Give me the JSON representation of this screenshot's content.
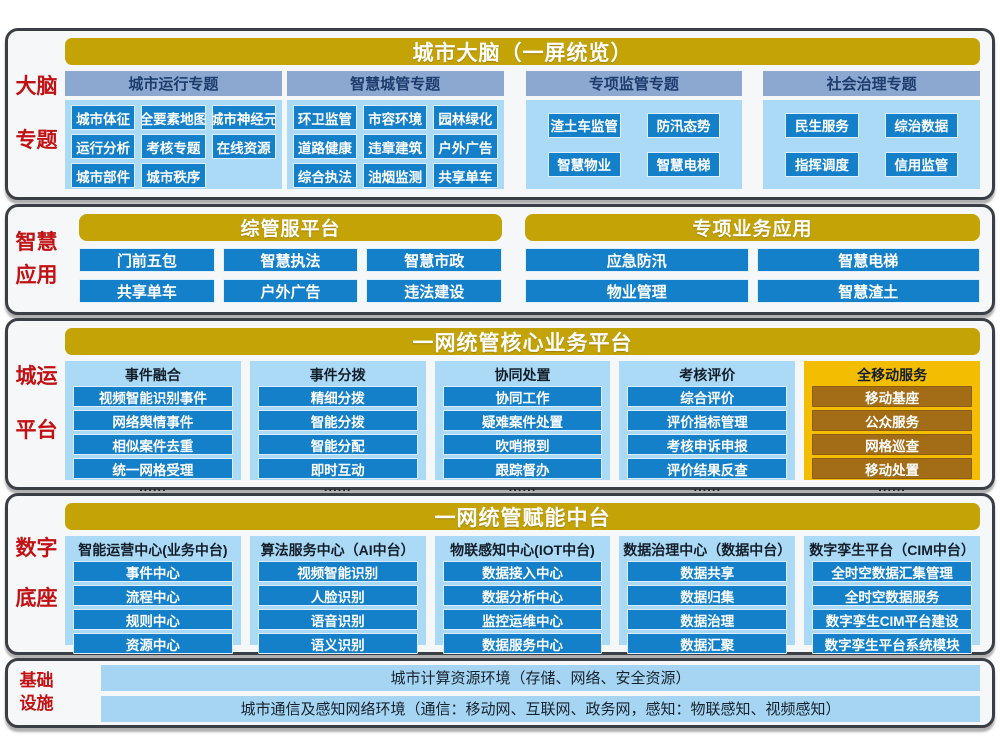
{
  "colors": {
    "gold_header": "#c4a307",
    "steel_header": "#8da8d0",
    "panel_blue": "#aadaf5",
    "chip_blue": "#1580ca",
    "panel_gold": "#f3bd02",
    "chip_brown": "#a36c16",
    "label_red": "#c01113",
    "band_border": "#3a3f45"
  },
  "bands": [
    {
      "id": "brain",
      "label_lines": [
        "大脑",
        "专题"
      ],
      "title": "城市大脑（一屏统览）",
      "groups": [
        {
          "header": "城市运行专题",
          "cols": 3,
          "items": [
            "城市体征",
            "全要素地图",
            "城市神经元",
            "运行分析",
            "考核专题",
            "在线资源",
            "城市部件",
            "城市秩序"
          ]
        },
        {
          "header": "智慧城管专题",
          "cols": 3,
          "items": [
            "环卫监管",
            "市容环境",
            "园林绿化",
            "道路健康",
            "违章建筑",
            "户外广告",
            "综合执法",
            "油烟监测",
            "共享单车"
          ]
        },
        {
          "header": "专项监管专题",
          "cols": 2,
          "items": [
            "渣土车监管",
            "防汛态势",
            "智慧物业",
            "智慧电梯"
          ]
        },
        {
          "header": "社会治理专题",
          "cols": 2,
          "items": [
            "民生服务",
            "综治数据",
            "指挥调度",
            "信用监管"
          ]
        }
      ]
    },
    {
      "id": "apps",
      "label_lines": [
        "智慧",
        "应用"
      ],
      "groups": [
        {
          "title": "综管服平台",
          "cols": 3,
          "items": [
            "门前五包",
            "智慧执法",
            "智慧市政",
            "共享单车",
            "户外广告",
            "违法建设"
          ]
        },
        {
          "title": "专项业务应用",
          "cols": 2,
          "items": [
            "应急防汛",
            "智慧电梯",
            "物业管理",
            "智慧渣土"
          ]
        }
      ]
    },
    {
      "id": "platform",
      "label_lines": [
        "城运",
        "平台"
      ],
      "title": "一网统管核心业务平台",
      "columns": [
        {
          "header": "事件融合",
          "theme": "blue",
          "more": "......",
          "items": [
            "视频智能识别事件",
            "网络舆情事件",
            "相似案件去重",
            "统一网格受理"
          ]
        },
        {
          "header": "事件分拨",
          "theme": "blue",
          "more": "......",
          "items": [
            "精细分拨",
            "智能分拨",
            "智能分配",
            "即时互动"
          ]
        },
        {
          "header": "协同处置",
          "theme": "blue",
          "more": "......",
          "items": [
            "协同工作",
            "疑难案件处置",
            "吹哨报到",
            "跟踪督办"
          ]
        },
        {
          "header": "考核评价",
          "theme": "blue",
          "more": "......",
          "items": [
            "综合评价",
            "评价指标管理",
            "考核申诉申报",
            "评价结果反查"
          ]
        },
        {
          "header": "全移动服务",
          "theme": "gold",
          "more": "......",
          "items": [
            "移动基座",
            "公众服务",
            "网格巡查",
            "移动处置"
          ]
        }
      ]
    },
    {
      "id": "base",
      "label_lines": [
        "数字",
        "底座"
      ],
      "title": "一网统管赋能中台",
      "columns": [
        {
          "header": "智能运营中心(业务中台)",
          "theme": "blue",
          "items": [
            "事件中心",
            "流程中心",
            "规则中心",
            "资源中心"
          ]
        },
        {
          "header": "算法服务中心（AI中台）",
          "theme": "blue",
          "items": [
            "视频智能识别",
            "人脸识别",
            "语音识别",
            "语义识别"
          ]
        },
        {
          "header": "物联感知中心(IOT中台)",
          "theme": "blue",
          "items": [
            "数据接入中心",
            "数据分析中心",
            "监控运维中心",
            "数据服务中心"
          ]
        },
        {
          "header": "数据治理中心（数据中台）",
          "theme": "blue",
          "items": [
            "数据共享",
            "数据归集",
            "数据治理",
            "数据汇聚"
          ]
        },
        {
          "header": "数字孪生平台（CIM中台）",
          "theme": "blue",
          "items": [
            "全时空数据汇集管理",
            "全时空数据服务",
            "数字孪生CIM平台建设",
            "数字孪生平台系统模块"
          ]
        }
      ]
    },
    {
      "id": "infra",
      "label_lines": [
        "基础",
        "设施"
      ],
      "bars": [
        "城市计算资源环境（存储、网络、安全资源）",
        "城市通信及感知网络环境（通信：移动网、互联网、政务网，感知：物联感知、视频感知）"
      ]
    }
  ]
}
